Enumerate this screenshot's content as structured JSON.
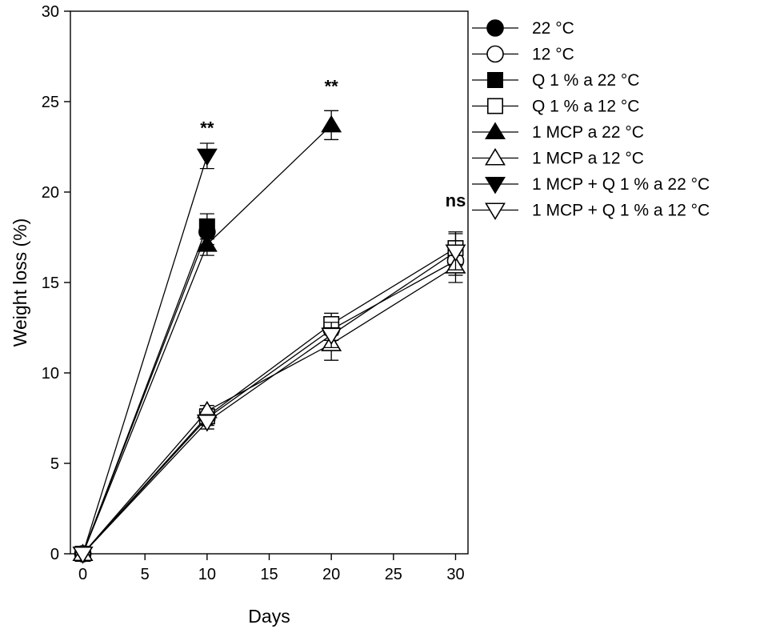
{
  "chart_data": {
    "type": "line",
    "xlabel": "Days",
    "ylabel": "Weight loss  (%)",
    "xlim": [
      -1,
      31
    ],
    "ylim": [
      0,
      30
    ],
    "xticks": [
      0,
      5,
      10,
      15,
      20,
      25,
      30
    ],
    "yticks": [
      0,
      5,
      10,
      15,
      20,
      25,
      30
    ],
    "legend_position": "right",
    "series": [
      {
        "name": "22 °C",
        "marker": "circle",
        "fill": "filled",
        "points": [
          [
            0,
            0
          ],
          [
            10,
            17.8
          ]
        ],
        "errors": [
          0,
          0.7
        ]
      },
      {
        "name": "12 °C",
        "marker": "circle",
        "fill": "open",
        "points": [
          [
            0,
            0
          ],
          [
            10,
            7.5
          ],
          [
            20,
            12.4
          ],
          [
            30,
            16.2
          ]
        ],
        "errors": [
          0,
          0.4,
          0.6,
          0.8
        ]
      },
      {
        "name": "Q 1 % a 22 °C",
        "marker": "square",
        "fill": "filled",
        "points": [
          [
            0,
            0
          ],
          [
            10,
            18.1
          ]
        ],
        "errors": [
          0,
          0.7
        ]
      },
      {
        "name": "Q 1 % a 12 °C",
        "marker": "square",
        "fill": "open",
        "points": [
          [
            0,
            0
          ],
          [
            10,
            7.6
          ],
          [
            20,
            12.7
          ],
          [
            30,
            16.9
          ]
        ],
        "errors": [
          0,
          0.4,
          0.6,
          0.9
        ]
      },
      {
        "name": "1 MCP a 22 °C",
        "marker": "triangle-up",
        "fill": "filled",
        "points": [
          [
            0,
            0
          ],
          [
            10,
            17.1
          ],
          [
            20,
            23.7
          ]
        ],
        "errors": [
          0,
          0.6,
          0.8
        ]
      },
      {
        "name": "1 MCP a 12 °C",
        "marker": "triangle-up",
        "fill": "open",
        "points": [
          [
            0,
            0
          ],
          [
            10,
            7.9
          ],
          [
            20,
            11.6
          ],
          [
            30,
            15.9
          ]
        ],
        "errors": [
          0,
          0.3,
          0.9,
          0.9
        ]
      },
      {
        "name": "1 MCP + Q 1 % a 22 °C",
        "marker": "triangle-down",
        "fill": "filled",
        "points": [
          [
            0,
            0
          ],
          [
            10,
            22.0
          ]
        ],
        "errors": [
          0,
          0.7
        ]
      },
      {
        "name": "1 MCP + Q 1 % a 12 °C",
        "marker": "triangle-down",
        "fill": "open",
        "points": [
          [
            0,
            0
          ],
          [
            10,
            7.3
          ],
          [
            20,
            12.1
          ],
          [
            30,
            16.7
          ]
        ],
        "errors": [
          0,
          0.4,
          0.7,
          1.0
        ]
      }
    ],
    "annotations": [
      {
        "text": "**",
        "x": 10,
        "y": 23.2
      },
      {
        "text": "**",
        "x": 20,
        "y": 25.5
      },
      {
        "text": "ns",
        "x": 30,
        "y": 19.2
      }
    ]
  }
}
